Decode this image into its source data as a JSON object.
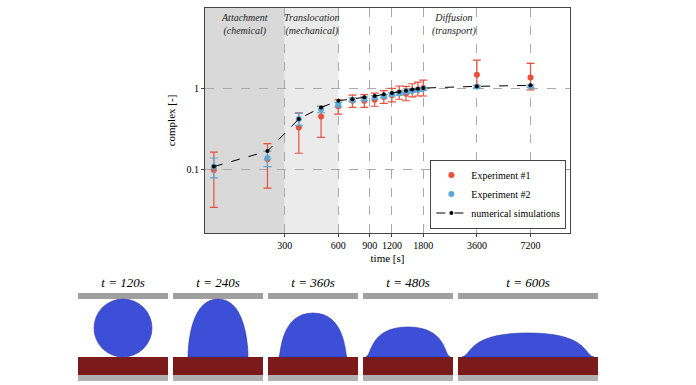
{
  "chart_data": {
    "type": "scatter",
    "x_title": "time [s]",
    "y_title": "complex [-]",
    "log": true,
    "grid": true,
    "legend": "lower right",
    "xlim": [
      107,
      12000
    ],
    "xticks": [
      300,
      600,
      900,
      1200,
      1800,
      3600,
      7200
    ],
    "ylim": [
      0.017,
      9.5
    ],
    "yticks": [
      0.1,
      1
    ],
    "regions": [
      {
        "label": [
          "Attachment",
          "(chemical)"
        ],
        "x0": 107,
        "x1": 300,
        "color": "#d9d9d9"
      },
      {
        "label": [
          "Translocation",
          "(mechanical)"
        ],
        "x0": 300,
        "x1": 600,
        "color": "#ebebeb"
      },
      {
        "label": [
          "Diffusion",
          "(transport)"
        ],
        "x0": 600,
        "x1": 12000
      }
    ],
    "x": [
      120,
      240,
      360,
      480,
      600,
      720,
      840,
      960,
      1080,
      1200,
      1320,
      1440,
      1560,
      1680,
      1800,
      3600,
      7200
    ],
    "series": [
      {
        "name": "Experiment #1",
        "color": "#e8503a",
        "marker": "circle",
        "values": [
          0.1,
          0.135,
          0.33,
          0.45,
          0.6,
          0.7,
          0.7,
          0.72,
          0.78,
          0.82,
          0.88,
          0.85,
          0.93,
          0.96,
          1.0,
          1.45,
          1.35
        ],
        "error_plus": [
          0.065,
          0.075,
          0.17,
          0.15,
          0.12,
          0.12,
          0.13,
          0.15,
          0.15,
          0.17,
          0.18,
          0.2,
          0.2,
          0.22,
          0.25,
          0.75,
          0.65
        ],
        "error_minus": [
          0.065,
          0.075,
          0.17,
          0.2,
          0.12,
          0.12,
          0.12,
          0.12,
          0.13,
          0.14,
          0.15,
          0.15,
          0.15,
          0.16,
          0.2,
          0.45,
          0.4
        ]
      },
      {
        "name": "Experiment #2",
        "color": "#5aa9d6",
        "marker": "circle",
        "values": [
          0.11,
          0.14,
          0.42,
          0.55,
          0.63,
          0.72,
          0.74,
          0.77,
          0.8,
          0.84,
          0.86,
          0.9,
          0.93,
          0.95,
          0.98,
          1.04,
          1.05
        ],
        "error_plus": [
          0.03,
          0.03,
          0.07,
          0.05,
          0.04,
          0.04,
          0.04,
          0.04,
          0.04,
          0.04,
          0.04,
          0.04,
          0.04,
          0.04,
          0.04,
          0.04,
          0.04
        ],
        "error_minus": [
          0.03,
          0.03,
          0.07,
          0.05,
          0.04,
          0.04,
          0.04,
          0.04,
          0.04,
          0.04,
          0.04,
          0.04,
          0.04,
          0.04,
          0.04,
          0.04,
          0.04
        ]
      },
      {
        "name": "numerical simulations",
        "color": "#000000",
        "marker": "circle",
        "line_style": "dashed",
        "values": [
          0.11,
          0.17,
          0.42,
          0.58,
          0.7,
          0.73,
          0.77,
          0.8,
          0.84,
          0.87,
          0.9,
          0.93,
          0.96,
          0.98,
          1.0,
          1.05,
          1.08
        ]
      }
    ]
  },
  "snapshots": {
    "labels": [
      "t = 120s",
      "t = 240s",
      "t = 360s",
      "t = 480s",
      "t = 600s"
    ]
  }
}
